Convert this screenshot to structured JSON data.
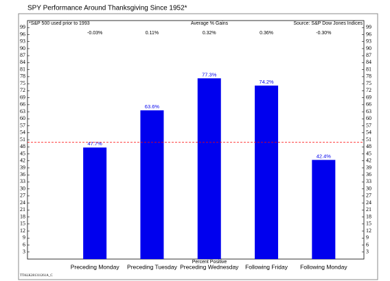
{
  "chart_data": {
    "type": "bar",
    "title": "SPY Performance Around Thanksgiving Since 1952*",
    "footnote": "*S&P 500 used prior to 1993",
    "source": "Source: S&P Dow Jones Indices",
    "gains_title": "Average % Gains",
    "gains": [
      "-0.03%",
      "0.11%",
      "0.32%",
      "0.36%",
      "-0.30%"
    ],
    "xlabel": "Percent Positive",
    "code": "TTALK281311261A_C",
    "categories": [
      "Preceding Monday",
      "Preceding Tuesday",
      "Preceding Wednesday",
      "Following Friday",
      "Following Monday"
    ],
    "values": [
      47.7,
      63.6,
      77.3,
      74.2,
      42.4
    ],
    "value_labels": [
      "47.7%",
      "63.6%",
      "77.3%",
      "74.2%",
      "42.4%"
    ],
    "color": "#0000ee",
    "reference_line": {
      "value": 50,
      "color": "#ff0000"
    },
    "ylim": [
      0,
      102
    ],
    "yticks": [
      3,
      6,
      9,
      12,
      15,
      18,
      21,
      24,
      27,
      30,
      33,
      36,
      39,
      42,
      45,
      48,
      51,
      54,
      57,
      60,
      63,
      66,
      69,
      72,
      75,
      78,
      81,
      84,
      87,
      90,
      93,
      96,
      99
    ]
  }
}
